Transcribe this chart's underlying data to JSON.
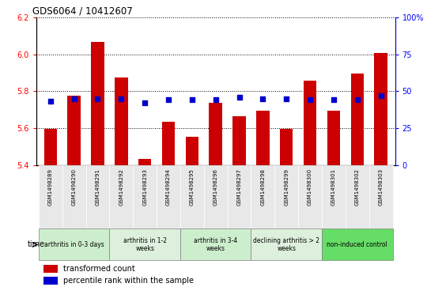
{
  "title": "GDS6064 / 10412607",
  "samples": [
    "GSM1498289",
    "GSM1498290",
    "GSM1498291",
    "GSM1498292",
    "GSM1498293",
    "GSM1498294",
    "GSM1498295",
    "GSM1498296",
    "GSM1498297",
    "GSM1498298",
    "GSM1498299",
    "GSM1498300",
    "GSM1498301",
    "GSM1498302",
    "GSM1498303"
  ],
  "transformed_count": [
    5.595,
    5.775,
    6.065,
    5.875,
    5.435,
    5.635,
    5.555,
    5.735,
    5.665,
    5.695,
    5.595,
    5.855,
    5.695,
    5.895,
    6.005
  ],
  "percentile_rank": [
    43,
    45,
    45,
    45,
    42,
    44,
    44,
    44,
    46,
    45,
    45,
    44,
    44,
    44,
    47
  ],
  "ylim_left": [
    5.4,
    6.2
  ],
  "ylim_right": [
    0,
    100
  ],
  "yticks_left": [
    5.4,
    5.6,
    5.8,
    6.0,
    6.2
  ],
  "yticks_right": [
    0,
    25,
    50,
    75,
    100
  ],
  "bar_color": "#cc0000",
  "dot_color": "#0000cc",
  "groups": [
    {
      "label": "arthritis in 0-3 days",
      "indices": [
        0,
        1,
        2
      ],
      "color": "#cceecc"
    },
    {
      "label": "arthritis in 1-2\nweeks",
      "indices": [
        3,
        4,
        5
      ],
      "color": "#ddf0dd"
    },
    {
      "label": "arthritis in 3-4\nweeks",
      "indices": [
        6,
        7,
        8
      ],
      "color": "#cceecc"
    },
    {
      "label": "declining arthritis > 2\nweeks",
      "indices": [
        9,
        10,
        11
      ],
      "color": "#ddf0dd"
    },
    {
      "label": "non-induced control",
      "indices": [
        12,
        13,
        14
      ],
      "color": "#66dd66"
    }
  ],
  "legend_red": "transformed count",
  "legend_blue": "percentile rank within the sample",
  "bar_width": 0.55,
  "bg_color": "#e8e8e8"
}
